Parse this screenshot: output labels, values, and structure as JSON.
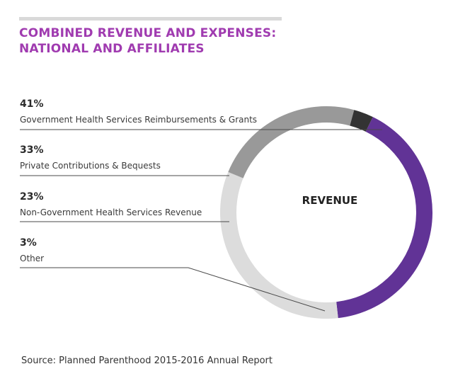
{
  "header": {
    "title_line1": "COMBINED REVENUE AND EXPENSES:",
    "title_line2": "NATIONAL AND AFFILIATES"
  },
  "chart_data": {
    "type": "pie",
    "title": "COMBINED REVENUE AND EXPENSES: NATIONAL AND AFFILIATES",
    "center_label": "REVENUE",
    "categories": [
      "Government Health Services Reimbursements & Grants",
      "Private Contributions & Bequests",
      "Non-Government Health Services Revenue",
      "Other"
    ],
    "values": [
      41,
      33,
      23,
      3
    ],
    "value_labels": [
      "41%",
      "33%",
      "23%",
      "3%"
    ],
    "colors": [
      "#613396",
      "#dcdcdc",
      "#999999",
      "#333333"
    ]
  },
  "footer": {
    "source": "Source: Planned Parenthood 2015-2016 Annual Report"
  }
}
